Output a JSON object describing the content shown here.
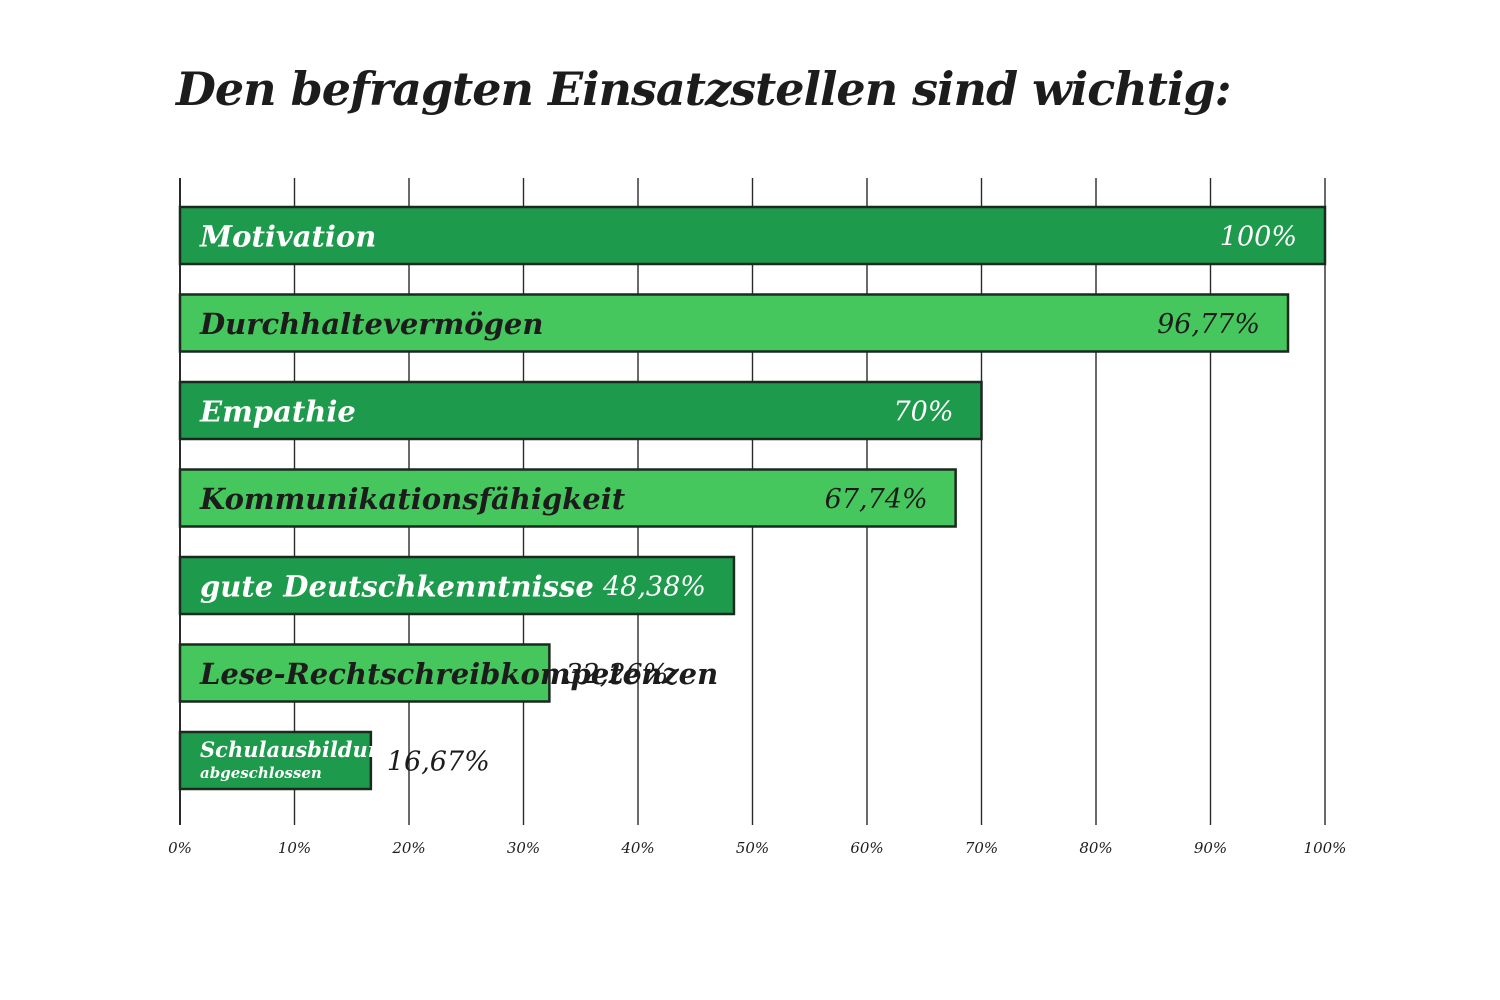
{
  "chart_data": {
    "type": "bar",
    "orientation": "horizontal",
    "title": "Den befragten Einsatzstellen sind wichtig:",
    "xlabel": "",
    "ylabel": "",
    "xlim": [
      0,
      100
    ],
    "grid": true,
    "categories": [
      "Motivation",
      "Durchhaltevermögen",
      "Empathie",
      "Kommunikationsfähigkeit",
      "gute Deutschkenntnisse",
      "Lese-Rechtschreibkompetenzen",
      "Schulausbildung abgeschlossen"
    ],
    "category_lines": [
      [
        "Motivation"
      ],
      [
        "Durchhaltevermögen"
      ],
      [
        "Empathie"
      ],
      [
        "Kommunikationsfähigkeit"
      ],
      [
        "gute Deutschkenntnisse"
      ],
      [
        "Lese-Rechtschreibkompetenzen"
      ],
      [
        "Schulausbildung",
        "abgeschlossen"
      ]
    ],
    "values": [
      100,
      96.77,
      70,
      67.74,
      48.38,
      32.26,
      16.67
    ],
    "value_labels": [
      "100%",
      "96,77%",
      "70%",
      "67,74%",
      "48,38%",
      "32,26%",
      "16,67%"
    ],
    "ticks": [
      0,
      10,
      20,
      30,
      40,
      50,
      60,
      70,
      80,
      90,
      100
    ],
    "tick_labels": [
      "0%",
      "10%",
      "20%",
      "30%",
      "40%",
      "50%",
      "60%",
      "70%",
      "80%",
      "90%",
      "100%"
    ],
    "colors": {
      "dark_bar": "#1e9a4c",
      "light_bar": "#46c75d",
      "bar_outline": "#1a2a1e",
      "grid": "#2a2a2a",
      "text_dark": "#1c1c1c",
      "text_light": "#ffffff"
    },
    "bar_color_sequence": [
      "dark",
      "light",
      "dark",
      "light",
      "dark",
      "light",
      "dark"
    ]
  }
}
